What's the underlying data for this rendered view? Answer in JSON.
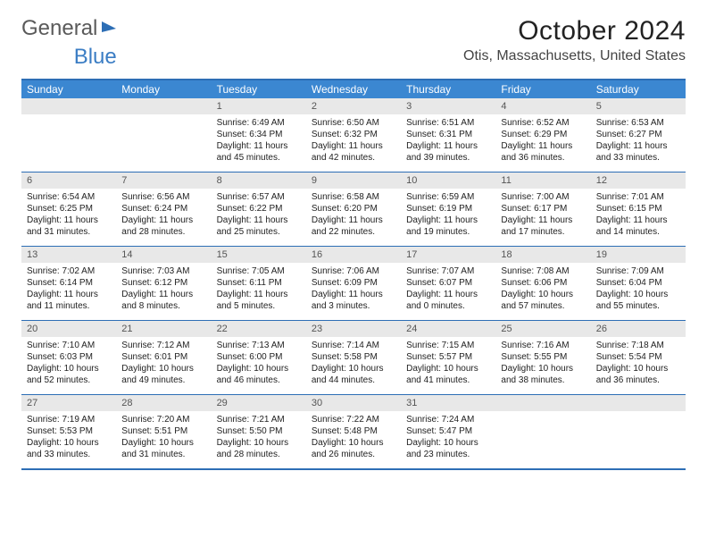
{
  "brand": {
    "part1": "General",
    "part2": "Blue"
  },
  "title": "October 2024",
  "location": "Otis, Massachusetts, United States",
  "colors": {
    "header_bg": "#3b87d1",
    "border": "#2d6eb5",
    "daynum_bg": "#e8e8e8",
    "text": "#222222",
    "brand_gray": "#5a5a5a",
    "brand_blue": "#3b7dc4"
  },
  "day_names": [
    "Sunday",
    "Monday",
    "Tuesday",
    "Wednesday",
    "Thursday",
    "Friday",
    "Saturday"
  ],
  "weeks": [
    [
      {
        "n": "",
        "sr": "",
        "ss": "",
        "dl1": "",
        "dl2": ""
      },
      {
        "n": "",
        "sr": "",
        "ss": "",
        "dl1": "",
        "dl2": ""
      },
      {
        "n": "1",
        "sr": "Sunrise: 6:49 AM",
        "ss": "Sunset: 6:34 PM",
        "dl1": "Daylight: 11 hours",
        "dl2": "and 45 minutes."
      },
      {
        "n": "2",
        "sr": "Sunrise: 6:50 AM",
        "ss": "Sunset: 6:32 PM",
        "dl1": "Daylight: 11 hours",
        "dl2": "and 42 minutes."
      },
      {
        "n": "3",
        "sr": "Sunrise: 6:51 AM",
        "ss": "Sunset: 6:31 PM",
        "dl1": "Daylight: 11 hours",
        "dl2": "and 39 minutes."
      },
      {
        "n": "4",
        "sr": "Sunrise: 6:52 AM",
        "ss": "Sunset: 6:29 PM",
        "dl1": "Daylight: 11 hours",
        "dl2": "and 36 minutes."
      },
      {
        "n": "5",
        "sr": "Sunrise: 6:53 AM",
        "ss": "Sunset: 6:27 PM",
        "dl1": "Daylight: 11 hours",
        "dl2": "and 33 minutes."
      }
    ],
    [
      {
        "n": "6",
        "sr": "Sunrise: 6:54 AM",
        "ss": "Sunset: 6:25 PM",
        "dl1": "Daylight: 11 hours",
        "dl2": "and 31 minutes."
      },
      {
        "n": "7",
        "sr": "Sunrise: 6:56 AM",
        "ss": "Sunset: 6:24 PM",
        "dl1": "Daylight: 11 hours",
        "dl2": "and 28 minutes."
      },
      {
        "n": "8",
        "sr": "Sunrise: 6:57 AM",
        "ss": "Sunset: 6:22 PM",
        "dl1": "Daylight: 11 hours",
        "dl2": "and 25 minutes."
      },
      {
        "n": "9",
        "sr": "Sunrise: 6:58 AM",
        "ss": "Sunset: 6:20 PM",
        "dl1": "Daylight: 11 hours",
        "dl2": "and 22 minutes."
      },
      {
        "n": "10",
        "sr": "Sunrise: 6:59 AM",
        "ss": "Sunset: 6:19 PM",
        "dl1": "Daylight: 11 hours",
        "dl2": "and 19 minutes."
      },
      {
        "n": "11",
        "sr": "Sunrise: 7:00 AM",
        "ss": "Sunset: 6:17 PM",
        "dl1": "Daylight: 11 hours",
        "dl2": "and 17 minutes."
      },
      {
        "n": "12",
        "sr": "Sunrise: 7:01 AM",
        "ss": "Sunset: 6:15 PM",
        "dl1": "Daylight: 11 hours",
        "dl2": "and 14 minutes."
      }
    ],
    [
      {
        "n": "13",
        "sr": "Sunrise: 7:02 AM",
        "ss": "Sunset: 6:14 PM",
        "dl1": "Daylight: 11 hours",
        "dl2": "and 11 minutes."
      },
      {
        "n": "14",
        "sr": "Sunrise: 7:03 AM",
        "ss": "Sunset: 6:12 PM",
        "dl1": "Daylight: 11 hours",
        "dl2": "and 8 minutes."
      },
      {
        "n": "15",
        "sr": "Sunrise: 7:05 AM",
        "ss": "Sunset: 6:11 PM",
        "dl1": "Daylight: 11 hours",
        "dl2": "and 5 minutes."
      },
      {
        "n": "16",
        "sr": "Sunrise: 7:06 AM",
        "ss": "Sunset: 6:09 PM",
        "dl1": "Daylight: 11 hours",
        "dl2": "and 3 minutes."
      },
      {
        "n": "17",
        "sr": "Sunrise: 7:07 AM",
        "ss": "Sunset: 6:07 PM",
        "dl1": "Daylight: 11 hours",
        "dl2": "and 0 minutes."
      },
      {
        "n": "18",
        "sr": "Sunrise: 7:08 AM",
        "ss": "Sunset: 6:06 PM",
        "dl1": "Daylight: 10 hours",
        "dl2": "and 57 minutes."
      },
      {
        "n": "19",
        "sr": "Sunrise: 7:09 AM",
        "ss": "Sunset: 6:04 PM",
        "dl1": "Daylight: 10 hours",
        "dl2": "and 55 minutes."
      }
    ],
    [
      {
        "n": "20",
        "sr": "Sunrise: 7:10 AM",
        "ss": "Sunset: 6:03 PM",
        "dl1": "Daylight: 10 hours",
        "dl2": "and 52 minutes."
      },
      {
        "n": "21",
        "sr": "Sunrise: 7:12 AM",
        "ss": "Sunset: 6:01 PM",
        "dl1": "Daylight: 10 hours",
        "dl2": "and 49 minutes."
      },
      {
        "n": "22",
        "sr": "Sunrise: 7:13 AM",
        "ss": "Sunset: 6:00 PM",
        "dl1": "Daylight: 10 hours",
        "dl2": "and 46 minutes."
      },
      {
        "n": "23",
        "sr": "Sunrise: 7:14 AM",
        "ss": "Sunset: 5:58 PM",
        "dl1": "Daylight: 10 hours",
        "dl2": "and 44 minutes."
      },
      {
        "n": "24",
        "sr": "Sunrise: 7:15 AM",
        "ss": "Sunset: 5:57 PM",
        "dl1": "Daylight: 10 hours",
        "dl2": "and 41 minutes."
      },
      {
        "n": "25",
        "sr": "Sunrise: 7:16 AM",
        "ss": "Sunset: 5:55 PM",
        "dl1": "Daylight: 10 hours",
        "dl2": "and 38 minutes."
      },
      {
        "n": "26",
        "sr": "Sunrise: 7:18 AM",
        "ss": "Sunset: 5:54 PM",
        "dl1": "Daylight: 10 hours",
        "dl2": "and 36 minutes."
      }
    ],
    [
      {
        "n": "27",
        "sr": "Sunrise: 7:19 AM",
        "ss": "Sunset: 5:53 PM",
        "dl1": "Daylight: 10 hours",
        "dl2": "and 33 minutes."
      },
      {
        "n": "28",
        "sr": "Sunrise: 7:20 AM",
        "ss": "Sunset: 5:51 PM",
        "dl1": "Daylight: 10 hours",
        "dl2": "and 31 minutes."
      },
      {
        "n": "29",
        "sr": "Sunrise: 7:21 AM",
        "ss": "Sunset: 5:50 PM",
        "dl1": "Daylight: 10 hours",
        "dl2": "and 28 minutes."
      },
      {
        "n": "30",
        "sr": "Sunrise: 7:22 AM",
        "ss": "Sunset: 5:48 PM",
        "dl1": "Daylight: 10 hours",
        "dl2": "and 26 minutes."
      },
      {
        "n": "31",
        "sr": "Sunrise: 7:24 AM",
        "ss": "Sunset: 5:47 PM",
        "dl1": "Daylight: 10 hours",
        "dl2": "and 23 minutes."
      },
      {
        "n": "",
        "sr": "",
        "ss": "",
        "dl1": "",
        "dl2": ""
      },
      {
        "n": "",
        "sr": "",
        "ss": "",
        "dl1": "",
        "dl2": ""
      }
    ]
  ]
}
